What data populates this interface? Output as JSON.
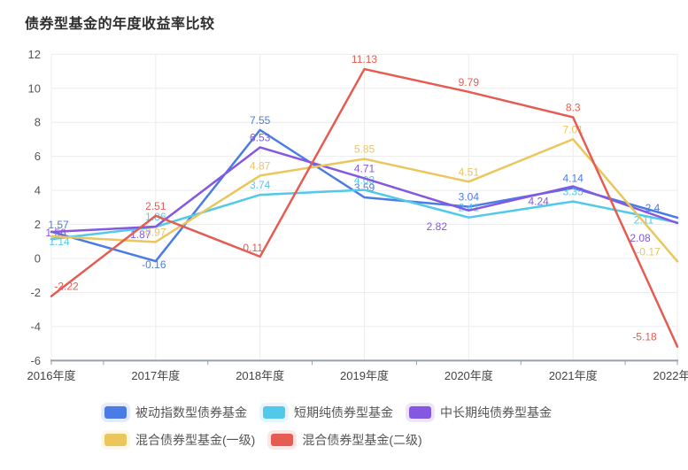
{
  "title": "债券型基金的年度收益率比较",
  "chart_data": {
    "type": "line",
    "categories": [
      "2016年度",
      "2017年度",
      "2018年度",
      "2019年度",
      "2020年度",
      "2021年度",
      "2022年度"
    ],
    "series": [
      {
        "name": "被动指数型债券基金",
        "color": "#4b7be5",
        "values": [
          1.57,
          -0.16,
          7.55,
          3.59,
          3.04,
          4.14,
          2.4
        ],
        "labels": [
          "1.57",
          "-0.16",
          "7.55",
          "3.59",
          "3.04",
          "4.14",
          "2.4"
        ]
      },
      {
        "name": "短期纯债券型基金",
        "color": "#52c9ea",
        "values": [
          1.14,
          1.86,
          3.74,
          4.03,
          2.41,
          3.35,
          2.11
        ],
        "labels": [
          "1.14",
          "1.86",
          "3.74",
          "4.03",
          "2.41",
          "3.35",
          "2.11"
        ]
      },
      {
        "name": "中长期纯债券型基金",
        "color": "#8458e0",
        "values": [
          1.56,
          1.87,
          6.53,
          4.71,
          2.82,
          4.24,
          2.08
        ],
        "labels": [
          "1.56",
          "1.87",
          "6.53",
          "4.71",
          "2.82",
          "4.24",
          "2.08"
        ]
      },
      {
        "name": "混合债券型基金(一级)",
        "color": "#eac65c",
        "values": [
          1.3,
          0.97,
          4.87,
          5.85,
          4.51,
          7.01,
          -0.17
        ],
        "labels": [
          null,
          "0.97",
          "4.87",
          "5.85",
          "4.51",
          "7.01",
          "-0.17"
        ]
      },
      {
        "name": "混合债券型基金(二级)",
        "color": "#e45c52",
        "values": [
          -2.22,
          2.51,
          0.11,
          11.13,
          9.79,
          8.3,
          -5.18
        ],
        "labels": [
          "-2.22",
          "2.51",
          "0.11",
          "11.13",
          "9.79",
          "8.3",
          "-5.18"
        ]
      }
    ],
    "ylim": [
      -6,
      12
    ],
    "ytick_step": 2,
    "grid": true,
    "legend_position": "bottom"
  }
}
